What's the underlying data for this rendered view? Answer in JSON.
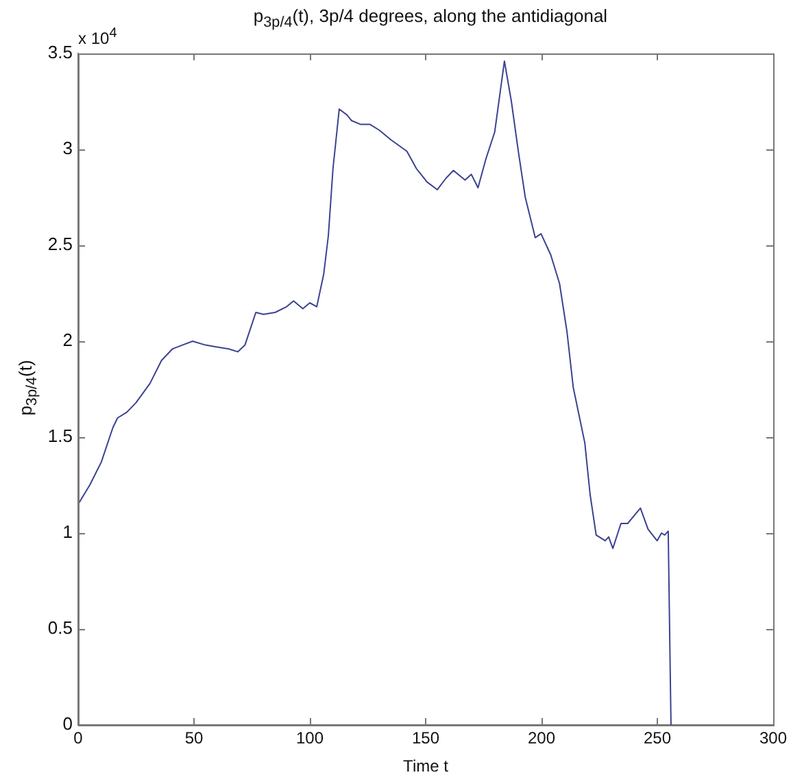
{
  "chart_data": {
    "type": "line",
    "title": "p$_{3p/4}$(t), 3p/4 degrees, along the antidiagonal",
    "xlabel": "Time t",
    "ylabel": "p$_{3p/4}$(t)",
    "annotations": [
      "x 10$^{4}$"
    ],
    "xlim": [
      0,
      300
    ],
    "xticks": [
      0,
      50,
      100,
      150,
      200,
      250,
      300
    ],
    "ylim": [
      0,
      3.5
    ],
    "yticks": [
      0,
      0.5,
      1,
      1.5,
      2,
      2.5,
      3,
      3.5
    ],
    "grid": false,
    "legend": false,
    "marker": "none",
    "line_style": "solid",
    "series": [
      {
        "color": "#3b4290",
        "x": [
          0,
          5,
          10,
          15,
          17,
          21,
          25,
          31,
          36,
          40.7,
          45,
          49.4,
          55,
          60,
          65,
          68.9,
          72,
          76.7,
          80,
          85,
          90,
          93,
          97,
          100,
          103,
          106,
          108,
          110,
          112.7,
          116,
          118,
          122,
          126,
          130,
          135,
          141.9,
          146,
          150.6,
          155,
          158.8,
          162,
          167,
          169.7,
          172.6,
          176,
          179.8,
          184,
          187,
          190,
          193,
          197.3,
          199.8,
          204,
          207.8,
          211,
          213.7,
          218.7,
          221,
          223.6,
          227.5,
          229,
          230.8,
          234.3,
          237.2,
          242.7,
          246,
          249.9,
          251.8,
          253.2,
          254.7,
          255.9
        ],
        "values": [
          1.15,
          1.25,
          1.37,
          1.55,
          1.6,
          1.63,
          1.68,
          1.78,
          1.9,
          1.96,
          1.98,
          2.0,
          1.98,
          1.97,
          1.96,
          1.945,
          1.98,
          2.15,
          2.14,
          2.15,
          2.18,
          2.21,
          2.17,
          2.2,
          2.18,
          2.35,
          2.55,
          2.9,
          3.21,
          3.18,
          3.15,
          3.13,
          3.13,
          3.1,
          3.05,
          2.99,
          2.9,
          2.83,
          2.79,
          2.85,
          2.89,
          2.84,
          2.87,
          2.8,
          2.95,
          3.09,
          3.46,
          3.25,
          2.99,
          2.75,
          2.54,
          2.56,
          2.45,
          2.3,
          2.05,
          1.76,
          1.47,
          1.2,
          0.99,
          0.96,
          0.98,
          0.92,
          1.05,
          1.05,
          1.13,
          1.02,
          0.96,
          1.0,
          0.99,
          1.01,
          0
        ]
      }
    ]
  }
}
